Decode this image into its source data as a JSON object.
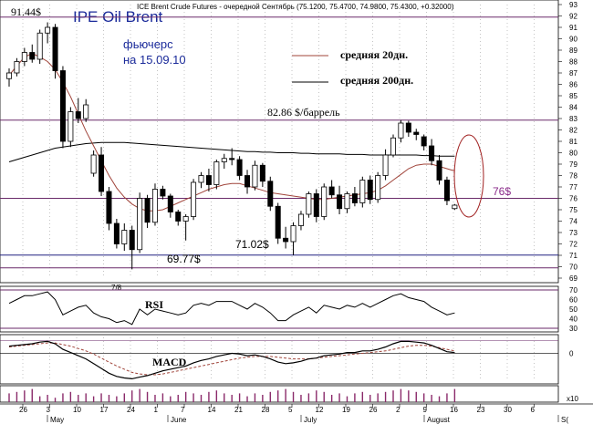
{
  "chart_data": [
    {
      "type": "candlestick",
      "title": "IPE Oil Brent",
      "header": "ICE Brent Crude Futures - очередной Сентябрь (75.1200, 75.4700, 74.9800, 75.4300, +0.32000)",
      "subtitle_line1": "фьючерс",
      "subtitle_line2": "на 15.09.10",
      "ylim": [
        69,
        93
      ],
      "yticks": [
        69,
        70,
        71,
        72,
        73,
        74,
        75,
        76,
        77,
        78,
        79,
        80,
        81,
        82,
        83,
        84,
        85,
        86,
        87,
        88,
        89,
        90,
        91,
        92,
        93
      ],
      "legend": [
        {
          "name": "средняя 20дн.",
          "color": "#a0443a"
        },
        {
          "name": "средняя 200дн.",
          "color": "#000000"
        }
      ],
      "annotations": {
        "high_label": "91.44$",
        "resistance_label": "82.86 $/баррель",
        "support_label": "71.02$",
        "low_label": "69.77$",
        "target_label": "76$",
        "misc_label": "7/8"
      },
      "levels": [
        {
          "value": 91.9,
          "color": "#6a2a6a"
        },
        {
          "value": 82.86,
          "color": "#6a2a6a"
        },
        {
          "value": 76.0,
          "color": "#6a2a6a"
        },
        {
          "value": 71.02,
          "color": "#202080"
        },
        {
          "value": 69.9,
          "color": "#6a2a6a"
        }
      ],
      "candles": [
        {
          "o": 86.5,
          "h": 87.4,
          "l": 85.8,
          "c": 87.0
        },
        {
          "o": 87.0,
          "h": 88.3,
          "l": 86.7,
          "c": 88.0
        },
        {
          "o": 88.0,
          "h": 89.2,
          "l": 87.6,
          "c": 88.8
        },
        {
          "o": 88.8,
          "h": 89.5,
          "l": 87.9,
          "c": 88.2
        },
        {
          "o": 88.2,
          "h": 90.8,
          "l": 87.8,
          "c": 90.5
        },
        {
          "o": 90.5,
          "h": 91.44,
          "l": 89.6,
          "c": 91.0
        },
        {
          "o": 91.0,
          "h": 91.3,
          "l": 86.5,
          "c": 87.2
        },
        {
          "o": 87.2,
          "h": 87.6,
          "l": 80.4,
          "c": 81.0
        },
        {
          "o": 81.0,
          "h": 84.0,
          "l": 80.5,
          "c": 83.6
        },
        {
          "o": 83.6,
          "h": 84.8,
          "l": 82.6,
          "c": 83.0
        },
        {
          "o": 83.0,
          "h": 84.7,
          "l": 82.7,
          "c": 84.2
        },
        {
          "o": 78.2,
          "h": 80.2,
          "l": 77.9,
          "c": 79.8
        },
        {
          "o": 79.8,
          "h": 80.5,
          "l": 76.2,
          "c": 76.6
        },
        {
          "o": 76.6,
          "h": 77.0,
          "l": 73.2,
          "c": 73.8
        },
        {
          "o": 73.8,
          "h": 74.2,
          "l": 71.6,
          "c": 72.0
        },
        {
          "o": 72.0,
          "h": 73.8,
          "l": 71.4,
          "c": 73.2
        },
        {
          "o": 73.2,
          "h": 73.6,
          "l": 69.77,
          "c": 71.5
        },
        {
          "o": 71.5,
          "h": 76.5,
          "l": 71.2,
          "c": 76.0
        },
        {
          "o": 76.0,
          "h": 76.3,
          "l": 73.4,
          "c": 73.9
        },
        {
          "o": 73.9,
          "h": 77.3,
          "l": 73.6,
          "c": 76.8
        },
        {
          "o": 76.8,
          "h": 77.1,
          "l": 75.9,
          "c": 76.2
        },
        {
          "o": 76.2,
          "h": 76.4,
          "l": 74.3,
          "c": 74.8
        },
        {
          "o": 74.8,
          "h": 75.0,
          "l": 73.6,
          "c": 74.0
        },
        {
          "o": 74.0,
          "h": 74.6,
          "l": 72.3,
          "c": 74.4
        },
        {
          "o": 74.4,
          "h": 77.7,
          "l": 74.1,
          "c": 77.4
        },
        {
          "o": 77.4,
          "h": 78.3,
          "l": 76.9,
          "c": 78.0
        },
        {
          "o": 78.0,
          "h": 78.6,
          "l": 76.6,
          "c": 77.2
        },
        {
          "o": 77.2,
          "h": 79.4,
          "l": 76.8,
          "c": 79.2
        },
        {
          "o": 79.2,
          "h": 79.9,
          "l": 78.6,
          "c": 79.5
        },
        {
          "o": 79.5,
          "h": 80.4,
          "l": 78.9,
          "c": 79.4
        },
        {
          "o": 79.4,
          "h": 79.7,
          "l": 77.6,
          "c": 78.0
        },
        {
          "o": 78.0,
          "h": 78.5,
          "l": 76.4,
          "c": 77.0
        },
        {
          "o": 77.0,
          "h": 79.3,
          "l": 76.7,
          "c": 78.9
        },
        {
          "o": 78.9,
          "h": 79.1,
          "l": 77.0,
          "c": 77.5
        },
        {
          "o": 77.5,
          "h": 77.9,
          "l": 74.9,
          "c": 75.3
        },
        {
          "o": 75.3,
          "h": 75.6,
          "l": 72.0,
          "c": 72.5
        },
        {
          "o": 72.5,
          "h": 73.5,
          "l": 71.6,
          "c": 72.2
        },
        {
          "o": 72.2,
          "h": 73.9,
          "l": 71.02,
          "c": 73.6
        },
        {
          "o": 73.6,
          "h": 74.9,
          "l": 73.2,
          "c": 74.6
        },
        {
          "o": 74.6,
          "h": 76.6,
          "l": 74.3,
          "c": 76.4
        },
        {
          "o": 76.4,
          "h": 76.8,
          "l": 73.9,
          "c": 74.4
        },
        {
          "o": 74.4,
          "h": 77.3,
          "l": 74.1,
          "c": 77.0
        },
        {
          "o": 77.0,
          "h": 77.6,
          "l": 76.0,
          "c": 76.3
        },
        {
          "o": 76.3,
          "h": 77.1,
          "l": 74.6,
          "c": 75.1
        },
        {
          "o": 75.1,
          "h": 76.6,
          "l": 74.7,
          "c": 76.4
        },
        {
          "o": 76.4,
          "h": 77.0,
          "l": 75.3,
          "c": 75.6
        },
        {
          "o": 75.6,
          "h": 77.9,
          "l": 75.2,
          "c": 77.6
        },
        {
          "o": 77.6,
          "h": 78.0,
          "l": 75.5,
          "c": 75.9
        },
        {
          "o": 75.9,
          "h": 78.3,
          "l": 75.6,
          "c": 78.0
        },
        {
          "o": 78.0,
          "h": 80.3,
          "l": 77.6,
          "c": 79.8
        },
        {
          "o": 79.8,
          "h": 81.6,
          "l": 79.6,
          "c": 81.3
        },
        {
          "o": 81.3,
          "h": 82.86,
          "l": 80.9,
          "c": 82.6
        },
        {
          "o": 82.6,
          "h": 82.8,
          "l": 81.4,
          "c": 81.8
        },
        {
          "o": 81.8,
          "h": 82.1,
          "l": 81.1,
          "c": 81.6
        },
        {
          "o": 81.4,
          "h": 81.6,
          "l": 80.2,
          "c": 80.6
        },
        {
          "o": 80.6,
          "h": 81.2,
          "l": 78.9,
          "c": 79.3
        },
        {
          "o": 79.3,
          "h": 79.8,
          "l": 77.2,
          "c": 77.6
        },
        {
          "o": 77.6,
          "h": 77.9,
          "l": 75.4,
          "c": 75.8
        },
        {
          "o": 75.1,
          "h": 75.5,
          "l": 74.98,
          "c": 75.4
        }
      ],
      "sma20": [
        86.8,
        87.6,
        88.4,
        88.7,
        88.4,
        88.0,
        87.3,
        86.2,
        84.9,
        83.4,
        81.9,
        80.6,
        79.3,
        78.0,
        76.9,
        76.1,
        75.5,
        75.1,
        74.9,
        74.9,
        75.0,
        75.3,
        75.6,
        75.9,
        76.2,
        76.5,
        76.8,
        77.0,
        77.2,
        77.3,
        77.3,
        77.1,
        76.9,
        76.7,
        76.5,
        76.4,
        76.3,
        76.2,
        76.1,
        76.0,
        75.9,
        75.9,
        76.0,
        76.1,
        76.2,
        76.3,
        76.4,
        76.5,
        76.7,
        77.1,
        77.6,
        78.1,
        78.6,
        78.9,
        79.0,
        79.0,
        78.8,
        78.6,
        78.4
      ],
      "sma200": [
        79.2,
        79.4,
        79.6,
        79.8,
        80.0,
        80.2,
        80.4,
        80.5,
        80.6,
        80.7,
        80.8,
        80.85,
        80.9,
        80.9,
        80.9,
        80.9,
        80.85,
        80.8,
        80.75,
        80.7,
        80.65,
        80.6,
        80.55,
        80.5,
        80.45,
        80.4,
        80.35,
        80.3,
        80.25,
        80.2,
        80.15,
        80.1,
        80.1,
        80.05,
        80.05,
        80.0,
        80.0,
        80.0,
        79.95,
        79.95,
        79.9,
        79.9,
        79.9,
        79.9,
        79.85,
        79.85,
        79.85,
        79.8,
        79.8,
        79.8,
        79.8,
        79.8,
        79.8,
        79.8,
        79.75,
        79.75,
        79.7,
        79.7,
        79.7
      ]
    },
    {
      "type": "line",
      "name": "RSI",
      "ylim": [
        30,
        70
      ],
      "yticks": [
        30,
        40,
        50,
        60,
        70
      ],
      "levels": [
        70,
        30
      ],
      "values": [
        56,
        60,
        64,
        64,
        66,
        68,
        60,
        44,
        48,
        52,
        54,
        46,
        42,
        40,
        36,
        38,
        34,
        50,
        44,
        50,
        48,
        46,
        44,
        46,
        54,
        56,
        54,
        58,
        58,
        58,
        54,
        50,
        56,
        52,
        46,
        38,
        38,
        44,
        48,
        52,
        46,
        54,
        52,
        50,
        54,
        52,
        56,
        52,
        56,
        60,
        64,
        66,
        62,
        60,
        58,
        52,
        48,
        44,
        46
      ]
    },
    {
      "type": "line",
      "name": "MACD",
      "yticks": [
        0
      ],
      "signal": [
        0.8,
        0.9,
        1.0,
        1.1,
        1.2,
        1.3,
        1.3,
        1.1,
        0.9,
        0.6,
        0.3,
        -0.1,
        -0.6,
        -1.1,
        -1.6,
        -2.0,
        -2.4,
        -2.6,
        -2.7,
        -2.7,
        -2.6,
        -2.4,
        -2.2,
        -2.0,
        -1.8,
        -1.6,
        -1.4,
        -1.2,
        -1.0,
        -0.8,
        -0.6,
        -0.5,
        -0.4,
        -0.4,
        -0.4,
        -0.5,
        -0.6,
        -0.7,
        -0.7,
        -0.7,
        -0.6,
        -0.5,
        -0.4,
        -0.3,
        -0.2,
        -0.1,
        0.0,
        0.1,
        0.2,
        0.3,
        0.5,
        0.7,
        0.9,
        1.0,
        1.0,
        0.9,
        0.7,
        0.5,
        0.3
      ],
      "macd": [
        0.9,
        1.0,
        1.1,
        1.2,
        1.4,
        1.5,
        1.2,
        0.5,
        0.1,
        -0.3,
        -0.7,
        -1.3,
        -1.9,
        -2.5,
        -2.9,
        -3.1,
        -3.2,
        -3.0,
        -2.8,
        -2.5,
        -2.2,
        -2.0,
        -1.8,
        -1.6,
        -1.2,
        -0.9,
        -0.7,
        -0.4,
        -0.2,
        0.0,
        -0.1,
        -0.3,
        -0.2,
        -0.4,
        -0.7,
        -1.1,
        -1.3,
        -1.2,
        -1.0,
        -0.7,
        -0.6,
        -0.3,
        -0.2,
        -0.1,
        0.1,
        0.1,
        0.3,
        0.3,
        0.5,
        0.8,
        1.2,
        1.5,
        1.5,
        1.4,
        1.3,
        1.0,
        0.6,
        0.2,
        0.1
      ],
      "ylim": [
        -3.5,
        2.0
      ]
    },
    {
      "type": "bar",
      "name": "histogram",
      "values": [
        0.6,
        0.7,
        0.8,
        0.9,
        0.4,
        0.5,
        0.3,
        0.6,
        0.7,
        0.5,
        0.6,
        0.4,
        0.6,
        0.5,
        0.4,
        0.6,
        0.8,
        0.9,
        0.7,
        0.5,
        0.6,
        0.4,
        0.5,
        0.7,
        0.6,
        0.5,
        0.7,
        0.8,
        0.6,
        0.5,
        0.6,
        0.4,
        0.6,
        0.5,
        0.7,
        0.8,
        0.9,
        0.7,
        0.5,
        0.6,
        0.8,
        0.7,
        0.5,
        0.6,
        0.4,
        0.6,
        0.7,
        0.5,
        0.6,
        0.7,
        0.8,
        0.9,
        0.8,
        0.7,
        0.6,
        0.5,
        0.4,
        0.6,
        0.9
      ],
      "ytick_label": "x10"
    }
  ],
  "x_axis": {
    "day_labels": [
      "26",
      "3",
      "10",
      "17",
      "24",
      "1",
      "7",
      "14",
      "21",
      "28",
      "5",
      "12",
      "19",
      "26",
      "2",
      "9",
      "16",
      "23",
      "30",
      "6"
    ],
    "month_labels": [
      "May",
      "June",
      "July",
      "August",
      "S("
    ]
  }
}
